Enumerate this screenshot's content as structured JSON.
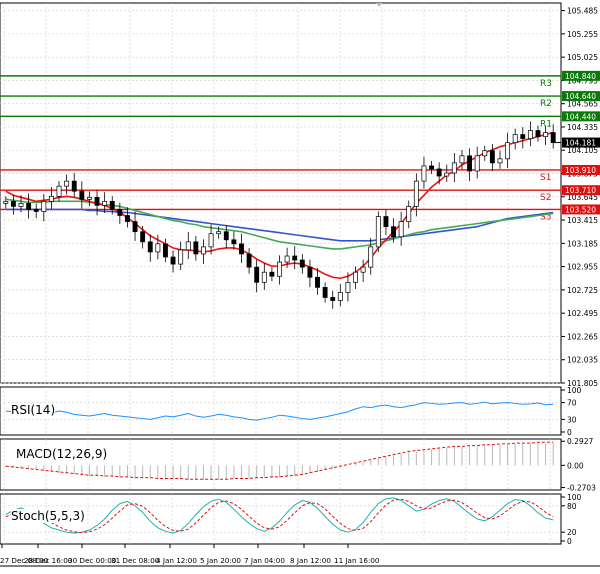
{
  "chart_data": {
    "type": "candlestick",
    "price_axis": {
      "ticks": [
        "105.485",
        "105.255",
        "105.025",
        "104.795",
        "104.565",
        "104.335",
        "104.105",
        "103.875",
        "103.645",
        "103.415",
        "103.185",
        "102.955",
        "102.725",
        "102.495",
        "102.265",
        "102.035",
        "101.805"
      ],
      "tick_values": [
        105.485,
        105.255,
        105.025,
        104.795,
        104.565,
        104.335,
        104.105,
        103.875,
        103.645,
        103.415,
        103.185,
        102.955,
        102.725,
        102.495,
        102.265,
        102.035,
        101.805
      ],
      "ylim": [
        101.805,
        105.56
      ]
    },
    "current_price": "104.181",
    "levels": [
      {
        "name": "R3",
        "value": 104.84,
        "label": "104.840",
        "color": "#0a7a0a"
      },
      {
        "name": "R2",
        "value": 104.64,
        "label": "104.640",
        "color": "#0a7a0a"
      },
      {
        "name": "R1",
        "value": 104.44,
        "label": "104.440",
        "color": "#0a7a0a"
      },
      {
        "name": "S1",
        "value": 103.91,
        "label": "103.910",
        "color": "#e01010"
      },
      {
        "name": "S2",
        "value": 103.71,
        "label": "103.710",
        "color": "#e01010"
      },
      {
        "name": "S3",
        "value": 103.52,
        "label": "103.520",
        "color": "#e01010"
      }
    ],
    "time_axis": [
      "27 Dec 08:00",
      "28 Dec 16:00",
      "30 Dec 00:00",
      "31 Dec 08:00",
      "4 Jan 12:00",
      "5 Jan 20:00",
      "7 Jan 04:00",
      "8 Jan 12:00",
      "11 Jan 16:00"
    ],
    "closes": [
      103.6,
      103.55,
      103.58,
      103.52,
      103.5,
      103.6,
      103.65,
      103.75,
      103.8,
      103.7,
      103.62,
      103.64,
      103.56,
      103.6,
      103.52,
      103.46,
      103.4,
      103.3,
      103.2,
      103.1,
      103.18,
      103.05,
      102.98,
      103.12,
      103.2,
      103.08,
      103.15,
      103.28,
      103.3,
      103.22,
      103.18,
      103.08,
      102.95,
      102.8,
      102.9,
      102.86,
      103.0,
      103.06,
      103.02,
      102.95,
      102.85,
      102.75,
      102.65,
      102.62,
      102.7,
      102.8,
      102.9,
      102.95,
      103.15,
      103.45,
      103.35,
      103.25,
      103.4,
      103.55,
      103.8,
      103.95,
      103.92,
      103.85,
      103.88,
      103.98,
      104.05,
      103.9,
      104.05,
      104.1,
      103.98,
      104.02,
      104.18,
      104.26,
      104.22,
      104.3,
      104.24,
      104.28,
      104.18
    ],
    "opens": [
      103.58,
      103.6,
      103.55,
      103.58,
      103.52,
      103.5,
      103.6,
      103.65,
      103.75,
      103.8,
      103.7,
      103.62,
      103.64,
      103.56,
      103.6,
      103.52,
      103.46,
      103.4,
      103.3,
      103.2,
      103.1,
      103.18,
      103.05,
      102.98,
      103.12,
      103.2,
      103.08,
      103.15,
      103.28,
      103.3,
      103.22,
      103.18,
      103.08,
      102.95,
      102.8,
      102.9,
      102.86,
      103.0,
      103.06,
      103.02,
      102.95,
      102.85,
      102.75,
      102.65,
      102.62,
      102.7,
      102.8,
      102.9,
      102.95,
      103.15,
      103.45,
      103.35,
      103.25,
      103.4,
      103.55,
      103.8,
      103.95,
      103.92,
      103.85,
      103.88,
      103.98,
      104.05,
      103.9,
      104.05,
      104.1,
      103.98,
      104.02,
      104.18,
      104.26,
      104.22,
      104.3,
      104.24,
      104.28
    ],
    "ma_fast": [
      103.7,
      103.66,
      103.64,
      103.62,
      103.6,
      103.61,
      103.62,
      103.64,
      103.65,
      103.64,
      103.62,
      103.6,
      103.58,
      103.56,
      103.53,
      103.49,
      103.44,
      103.38,
      103.32,
      103.26,
      103.22,
      103.18,
      103.14,
      103.12,
      103.12,
      103.11,
      103.1,
      103.11,
      103.13,
      103.14,
      103.14,
      103.12,
      103.08,
      103.03,
      102.99,
      102.96,
      102.96,
      102.98,
      102.99,
      102.98,
      102.95,
      102.92,
      102.88,
      102.85,
      102.84,
      102.86,
      102.9,
      102.96,
      103.04,
      103.14,
      103.22,
      103.3,
      103.38,
      103.48,
      103.58,
      103.66,
      103.74,
      103.8,
      103.86,
      103.9,
      103.96,
      104.0,
      104.04,
      104.08,
      104.11,
      104.14,
      104.16,
      104.18,
      104.2,
      104.22,
      104.24,
      104.26,
      104.28
    ],
    "ma_mid": [
      103.62,
      103.61,
      103.6,
      103.59,
      103.59,
      103.59,
      103.6,
      103.6,
      103.6,
      103.6,
      103.6,
      103.59,
      103.58,
      103.57,
      103.56,
      103.55,
      103.53,
      103.51,
      103.49,
      103.47,
      103.45,
      103.43,
      103.41,
      103.4,
      103.38,
      103.37,
      103.35,
      103.34,
      103.33,
      103.32,
      103.31,
      103.3,
      103.28,
      103.26,
      103.24,
      103.22,
      103.2,
      103.19,
      103.18,
      103.17,
      103.16,
      103.15,
      103.14,
      103.13,
      103.13,
      103.14,
      103.15,
      103.16,
      103.17,
      103.19,
      103.21,
      103.23,
      103.25,
      103.27,
      103.29,
      103.3,
      103.32,
      103.33,
      103.34,
      103.35,
      103.36,
      103.37,
      103.38,
      103.39,
      103.4,
      103.41,
      103.42,
      103.43,
      103.44,
      103.45,
      103.46,
      103.47,
      103.48
    ],
    "ma_slow": [
      103.52,
      103.52,
      103.52,
      103.52,
      103.52,
      103.52,
      103.52,
      103.52,
      103.52,
      103.52,
      103.52,
      103.51,
      103.51,
      103.5,
      103.5,
      103.49,
      103.49,
      103.48,
      103.47,
      103.46,
      103.45,
      103.44,
      103.43,
      103.42,
      103.41,
      103.4,
      103.39,
      103.38,
      103.37,
      103.36,
      103.35,
      103.34,
      103.33,
      103.32,
      103.31,
      103.3,
      103.29,
      103.28,
      103.27,
      103.26,
      103.25,
      103.24,
      103.23,
      103.22,
      103.21,
      103.21,
      103.21,
      103.21,
      103.21,
      103.22,
      103.23,
      103.24,
      103.25,
      103.26,
      103.27,
      103.28,
      103.29,
      103.3,
      103.31,
      103.32,
      103.33,
      103.34,
      103.35,
      103.37,
      103.39,
      103.41,
      103.43,
      103.44,
      103.45,
      103.46,
      103.47,
      103.48,
      103.49
    ],
    "rsi": {
      "label": "RSI(14)",
      "ticks": [
        "100",
        "70",
        "30",
        "0"
      ],
      "tick_values": [
        100,
        70,
        30,
        0
      ],
      "values": [
        50,
        48,
        52,
        46,
        44,
        40,
        45,
        50,
        47,
        42,
        40,
        38,
        41,
        44,
        40,
        38,
        36,
        34,
        32,
        30,
        34,
        38,
        36,
        40,
        44,
        38,
        35,
        38,
        42,
        40,
        36,
        34,
        30,
        28,
        32,
        35,
        40,
        38,
        35,
        32,
        30,
        33,
        36,
        40,
        44,
        48,
        55,
        60,
        58,
        62,
        64,
        60,
        58,
        62,
        65,
        70,
        68,
        66,
        67,
        69,
        70,
        66,
        68,
        71,
        67,
        69,
        70,
        68,
        66,
        67,
        69,
        65,
        66
      ]
    },
    "macd": {
      "label": "MACD(12,26,9)",
      "ticks": [
        "0.2927",
        "0.00",
        "-0.2703"
      ],
      "tick_values": [
        0.2927,
        0.0,
        -0.2703
      ],
      "histogram": [
        -0.02,
        -0.03,
        -0.04,
        -0.05,
        -0.06,
        -0.07,
        -0.08,
        -0.09,
        -0.1,
        -0.11,
        -0.12,
        -0.13,
        -0.13,
        -0.14,
        -0.14,
        -0.15,
        -0.15,
        -0.16,
        -0.16,
        -0.16,
        -0.17,
        -0.17,
        -0.17,
        -0.17,
        -0.18,
        -0.18,
        -0.18,
        -0.18,
        -0.18,
        -0.18,
        -0.17,
        -0.17,
        -0.17,
        -0.16,
        -0.16,
        -0.15,
        -0.15,
        -0.14,
        -0.13,
        -0.12,
        -0.1,
        -0.08,
        -0.06,
        -0.04,
        -0.02,
        0.0,
        0.02,
        0.04,
        0.06,
        0.08,
        0.1,
        0.12,
        0.14,
        0.16,
        0.17,
        0.18,
        0.19,
        0.2,
        0.21,
        0.22,
        0.22,
        0.23,
        0.23,
        0.24,
        0.24,
        0.25,
        0.25,
        0.26,
        0.26,
        0.26,
        0.27,
        0.27,
        0.27
      ],
      "signal": [
        -0.01,
        -0.02,
        -0.03,
        -0.04,
        -0.05,
        -0.06,
        -0.07,
        -0.08,
        -0.09,
        -0.1,
        -0.11,
        -0.12,
        -0.12,
        -0.13,
        -0.13,
        -0.14,
        -0.14,
        -0.15,
        -0.15,
        -0.15,
        -0.16,
        -0.16,
        -0.16,
        -0.16,
        -0.17,
        -0.17,
        -0.17,
        -0.17,
        -0.17,
        -0.17,
        -0.16,
        -0.16,
        -0.16,
        -0.15,
        -0.15,
        -0.14,
        -0.14,
        -0.13,
        -0.12,
        -0.11,
        -0.09,
        -0.07,
        -0.05,
        -0.03,
        -0.01,
        0.01,
        0.03,
        0.05,
        0.07,
        0.09,
        0.11,
        0.13,
        0.15,
        0.17,
        0.18,
        0.19,
        0.2,
        0.21,
        0.22,
        0.23,
        0.23,
        0.24,
        0.24,
        0.25,
        0.25,
        0.26,
        0.26,
        0.27,
        0.27,
        0.27,
        0.28,
        0.28,
        0.28
      ]
    },
    "stoch": {
      "label": "Stoch(5,5,3)",
      "ticks": [
        "100",
        "80",
        "20",
        "0"
      ],
      "tick_values": [
        100,
        80,
        20,
        0
      ],
      "k": [
        60,
        70,
        75,
        68,
        55,
        40,
        30,
        25,
        20,
        18,
        20,
        25,
        35,
        50,
        70,
        85,
        90,
        80,
        65,
        45,
        30,
        22,
        18,
        24,
        40,
        60,
        78,
        90,
        95,
        88,
        72,
        55,
        40,
        28,
        22,
        30,
        45,
        65,
        82,
        92,
        88,
        74,
        56,
        38,
        25,
        20,
        26,
        42,
        65,
        85,
        96,
        98,
        92,
        80,
        68,
        72,
        84,
        92,
        96,
        90,
        76,
        62,
        50,
        46,
        55,
        70,
        85,
        94,
        92,
        80,
        64,
        52,
        48
      ],
      "d": [
        55,
        62,
        68,
        70,
        65,
        55,
        42,
        32,
        25,
        21,
        19,
        21,
        27,
        37,
        52,
        68,
        82,
        85,
        79,
        64,
        47,
        33,
        24,
        22,
        27,
        41,
        59,
        76,
        88,
        91,
        85,
        72,
        56,
        41,
        30,
        27,
        32,
        47,
        64,
        80,
        87,
        85,
        73,
        56,
        40,
        28,
        24,
        29,
        44,
        64,
        82,
        93,
        95,
        90,
        80,
        73,
        75,
        84,
        91,
        93,
        87,
        76,
        63,
        53,
        50,
        57,
        70,
        83,
        90,
        89,
        79,
        65,
        55
      ]
    }
  }
}
